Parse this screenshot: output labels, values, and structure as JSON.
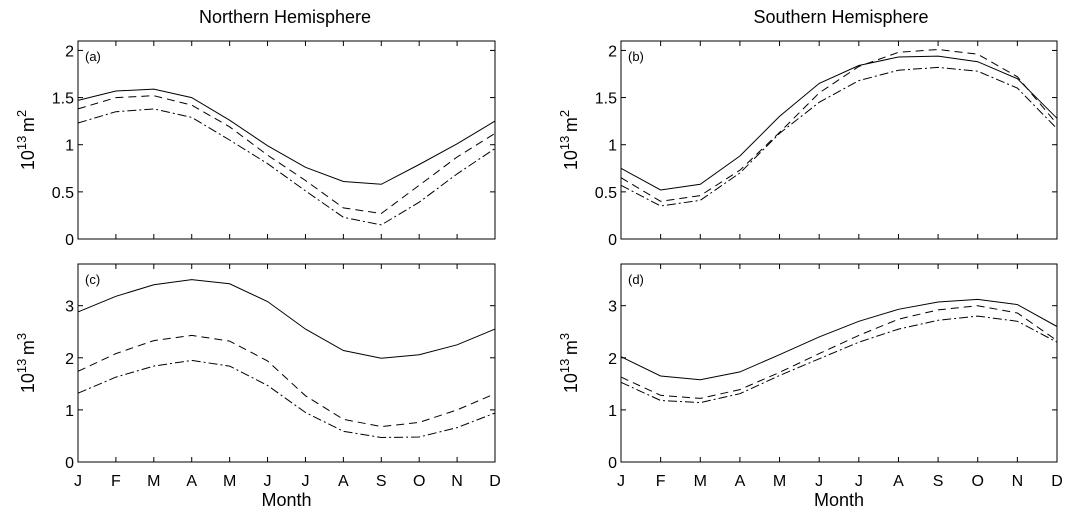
{
  "titles": [
    "Northern Hemisphere",
    "Southern Hemisphere"
  ],
  "chart_data": [
    {
      "type": "line",
      "panel_label": "(a)",
      "title": "Northern Hemisphere",
      "xlabel": "",
      "ylabel_base": "10",
      "ylabel_exp": "13",
      "ylabel_unit": "m",
      "ylabel_unit_exp": "2",
      "xlim": [
        0,
        11
      ],
      "ylim": [
        0,
        2.1
      ],
      "yticks": [
        "0",
        "0.5",
        "1",
        "1.5",
        "2"
      ],
      "ytick_values": [
        0,
        0.5,
        1,
        1.5,
        2
      ],
      "categories": [
        "J",
        "F",
        "M",
        "A",
        "M",
        "J",
        "J",
        "A",
        "S",
        "O",
        "N",
        "D"
      ],
      "series": [
        {
          "style": "solid",
          "values": [
            1.47,
            1.57,
            1.59,
            1.5,
            1.26,
            0.99,
            0.76,
            0.61,
            0.58,
            0.79,
            1.01,
            1.25
          ]
        },
        {
          "style": "dashed",
          "values": [
            1.38,
            1.5,
            1.52,
            1.42,
            1.19,
            0.89,
            0.62,
            0.33,
            0.27,
            0.57,
            0.87,
            1.12
          ]
        },
        {
          "style": "dashdot",
          "values": [
            1.23,
            1.35,
            1.38,
            1.29,
            1.05,
            0.8,
            0.51,
            0.23,
            0.15,
            0.39,
            0.69,
            0.96
          ]
        }
      ]
    },
    {
      "type": "line",
      "panel_label": "(b)",
      "title": "Southern Hemisphere",
      "xlabel": "",
      "ylabel_base": "10",
      "ylabel_exp": "13",
      "ylabel_unit": "m",
      "ylabel_unit_exp": "2",
      "xlim": [
        0,
        11
      ],
      "ylim": [
        0,
        2.1
      ],
      "yticks": [
        "0",
        "0.5",
        "1",
        "1.5",
        "2"
      ],
      "ytick_values": [
        0,
        0.5,
        1,
        1.5,
        2
      ],
      "categories": [
        "J",
        "F",
        "M",
        "A",
        "M",
        "J",
        "J",
        "A",
        "S",
        "O",
        "N",
        "D"
      ],
      "series": [
        {
          "style": "solid",
          "values": [
            0.75,
            0.52,
            0.58,
            0.88,
            1.3,
            1.65,
            1.84,
            1.93,
            1.94,
            1.88,
            1.7,
            1.28
          ]
        },
        {
          "style": "dashed",
          "values": [
            0.65,
            0.4,
            0.46,
            0.73,
            1.13,
            1.55,
            1.83,
            1.98,
            2.01,
            1.96,
            1.72,
            1.22
          ]
        },
        {
          "style": "dashdot",
          "values": [
            0.57,
            0.35,
            0.41,
            0.7,
            1.12,
            1.45,
            1.68,
            1.79,
            1.82,
            1.78,
            1.6,
            1.17
          ]
        }
      ]
    },
    {
      "type": "line",
      "panel_label": "(c)",
      "xlabel": "Month",
      "ylabel_base": "10",
      "ylabel_exp": "13",
      "ylabel_unit": "m",
      "ylabel_unit_exp": "3",
      "xlim": [
        0,
        11
      ],
      "ylim": [
        0,
        3.8
      ],
      "yticks": [
        "0",
        "1",
        "2",
        "3"
      ],
      "ytick_values": [
        0,
        1,
        2,
        3
      ],
      "categories": [
        "J",
        "F",
        "M",
        "A",
        "M",
        "J",
        "J",
        "A",
        "S",
        "O",
        "N",
        "D"
      ],
      "series": [
        {
          "style": "solid",
          "values": [
            2.88,
            3.18,
            3.4,
            3.5,
            3.42,
            3.08,
            2.55,
            2.14,
            1.99,
            2.06,
            2.25,
            2.55
          ]
        },
        {
          "style": "dashed",
          "values": [
            1.74,
            2.08,
            2.33,
            2.43,
            2.32,
            1.94,
            1.27,
            0.82,
            0.68,
            0.76,
            1.0,
            1.31
          ]
        },
        {
          "style": "dashdot",
          "values": [
            1.32,
            1.63,
            1.84,
            1.95,
            1.84,
            1.47,
            0.95,
            0.59,
            0.47,
            0.48,
            0.66,
            0.94
          ]
        }
      ]
    },
    {
      "type": "line",
      "panel_label": "(d)",
      "xlabel": "Month",
      "ylabel_base": "10",
      "ylabel_exp": "13",
      "ylabel_unit": "m",
      "ylabel_unit_exp": "3",
      "xlim": [
        0,
        11
      ],
      "ylim": [
        0,
        3.8
      ],
      "yticks": [
        "0",
        "1",
        "2",
        "3"
      ],
      "ytick_values": [
        0,
        1,
        2,
        3
      ],
      "categories": [
        "J",
        "F",
        "M",
        "A",
        "M",
        "J",
        "J",
        "A",
        "S",
        "O",
        "N",
        "D"
      ],
      "series": [
        {
          "style": "solid",
          "values": [
            2.02,
            1.65,
            1.58,
            1.73,
            2.06,
            2.4,
            2.7,
            2.93,
            3.07,
            3.12,
            3.02,
            2.6
          ]
        },
        {
          "style": "dashed",
          "values": [
            1.63,
            1.28,
            1.22,
            1.39,
            1.72,
            2.08,
            2.43,
            2.74,
            2.92,
            3.0,
            2.86,
            2.33
          ]
        },
        {
          "style": "dashdot",
          "values": [
            1.53,
            1.18,
            1.14,
            1.31,
            1.66,
            1.98,
            2.3,
            2.55,
            2.72,
            2.8,
            2.7,
            2.3
          ]
        }
      ]
    }
  ]
}
